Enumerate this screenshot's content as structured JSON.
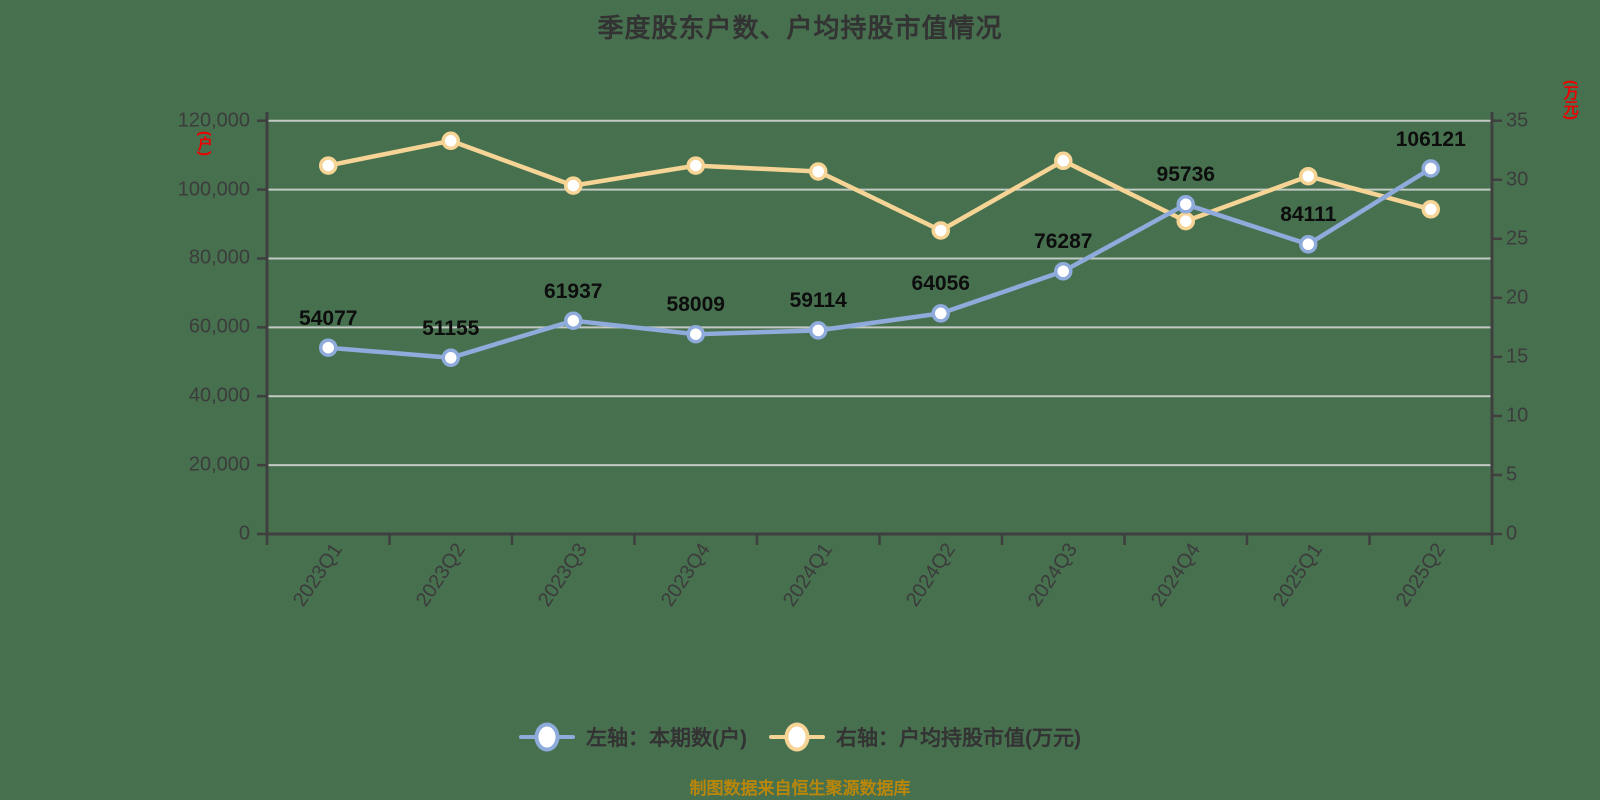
{
  "title": "季度股东户数、户均持股市值情况",
  "source_note": "制图数据来自恒生聚源数据库",
  "colors": {
    "background": "#47704F",
    "title_text": "#333333",
    "axis_line": "#3F3F3F",
    "grid_line": "#C3C9C3",
    "tick_text": "#3C3C3C",
    "unit_text": "#EE0000",
    "data_label_text": "#0D0D0D",
    "legend_text": "#333333",
    "source_text": "#B8860B",
    "series_holders": "#8FABDB",
    "series_value": "#F6D495"
  },
  "legend": {
    "items": [
      {
        "label": "左轴：本期数(户)",
        "color": "#8FABDB"
      },
      {
        "label": "右轴：户均持股市值(万元)",
        "color": "#F6D495"
      }
    ]
  },
  "chart_data": {
    "type": "line",
    "title": "季度股东户数、户均持股市值情况",
    "categories": [
      "2023Q1",
      "2023Q2",
      "2023Q3",
      "2023Q4",
      "2024Q1",
      "2024Q2",
      "2024Q3",
      "2024Q4",
      "2025Q1",
      "2025Q2"
    ],
    "series": [
      {
        "name": "左轴：本期数(户)",
        "axis": "left",
        "color": "#8FABDB",
        "marker": "white-filled-circle",
        "show_point_labels": true,
        "values": [
          54077,
          51155,
          61937,
          58009,
          59114,
          64056,
          76287,
          95736,
          84111,
          106121
        ],
        "point_labels": [
          "54077",
          "51155",
          "61937",
          "58009",
          "59114",
          "64056",
          "76287",
          "95736",
          "84111",
          "106121"
        ]
      },
      {
        "name": "右轴：户均持股市值(万元)",
        "axis": "right",
        "color": "#F6D495",
        "marker": "white-filled-circle",
        "show_point_labels": false,
        "values": [
          31.2,
          33.3,
          29.5,
          31.2,
          30.7,
          25.7,
          31.6,
          26.5,
          30.3,
          27.5
        ]
      }
    ],
    "left_axis": {
      "unit": "(户)",
      "min": 0,
      "max": 120000,
      "step": 20000,
      "tick_labels": [
        "0",
        "20,000",
        "40,000",
        "60,000",
        "80,000",
        "100,000",
        "120,000"
      ]
    },
    "right_axis": {
      "unit": "(万元)",
      "min": 0,
      "max": 35,
      "step": 5,
      "tick_labels": [
        "0",
        "5",
        "10",
        "15",
        "20",
        "25",
        "30",
        "35"
      ]
    },
    "grid": true,
    "legend_position": "bottom"
  }
}
